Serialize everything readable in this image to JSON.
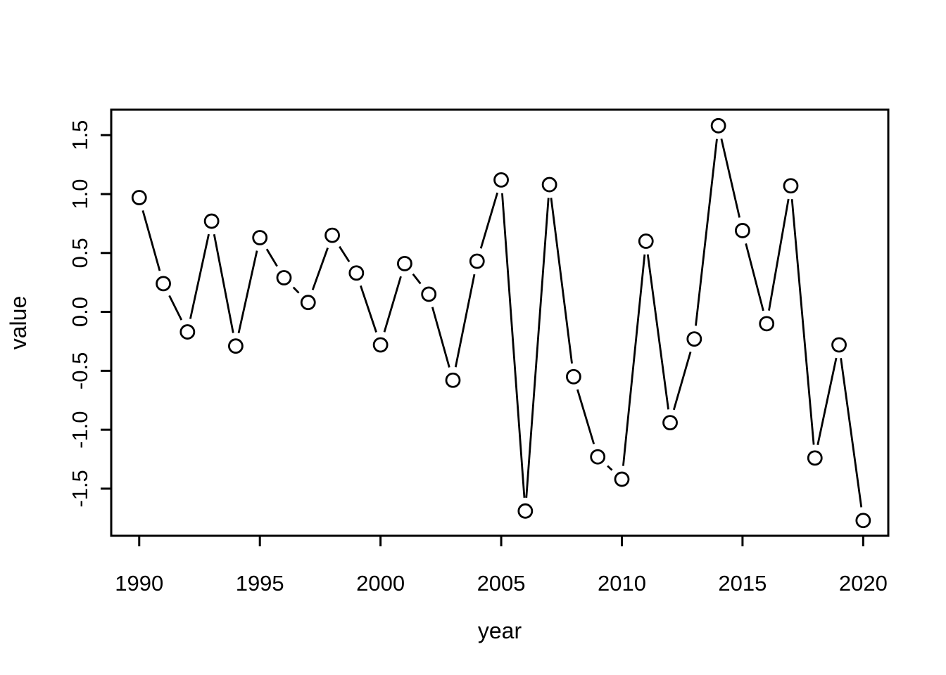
{
  "figure": {
    "background_color": "#ffffff",
    "foreground_color": "#000000",
    "title": ""
  },
  "chart_data": {
    "type": "line",
    "title": "",
    "xlabel": "year",
    "ylabel": "value",
    "marker": "open-circle",
    "line_style": "solid-with-marker-gaps",
    "grid": false,
    "legend": null,
    "line_color": "#000000",
    "marker_color": "#000000",
    "x": [
      1990,
      1991,
      1992,
      1993,
      1994,
      1995,
      1996,
      1997,
      1998,
      1999,
      2000,
      2001,
      2002,
      2003,
      2004,
      2005,
      2006,
      2007,
      2008,
      2009,
      2010,
      2011,
      2012,
      2013,
      2014,
      2015,
      2016,
      2017,
      2018,
      2019,
      2020
    ],
    "values": [
      0.97,
      0.24,
      -0.17,
      0.77,
      -0.29,
      0.63,
      0.29,
      0.08,
      0.65,
      0.33,
      -0.28,
      0.41,
      0.15,
      -0.58,
      0.43,
      1.12,
      -1.69,
      1.08,
      -0.55,
      -1.23,
      -1.42,
      0.6,
      -0.94,
      -0.23,
      1.58,
      0.69,
      -0.1,
      1.07,
      -1.24,
      -0.28,
      -1.77
    ],
    "x_ticks": [
      1990,
      1995,
      2000,
      2005,
      2010,
      2015,
      2020
    ],
    "y_ticks": [
      -1.5,
      -1.0,
      -0.5,
      0.0,
      0.5,
      1.0,
      1.5
    ],
    "xlim": [
      1988.84,
      2021.04
    ],
    "ylim": [
      -1.9,
      1.716
    ]
  }
}
